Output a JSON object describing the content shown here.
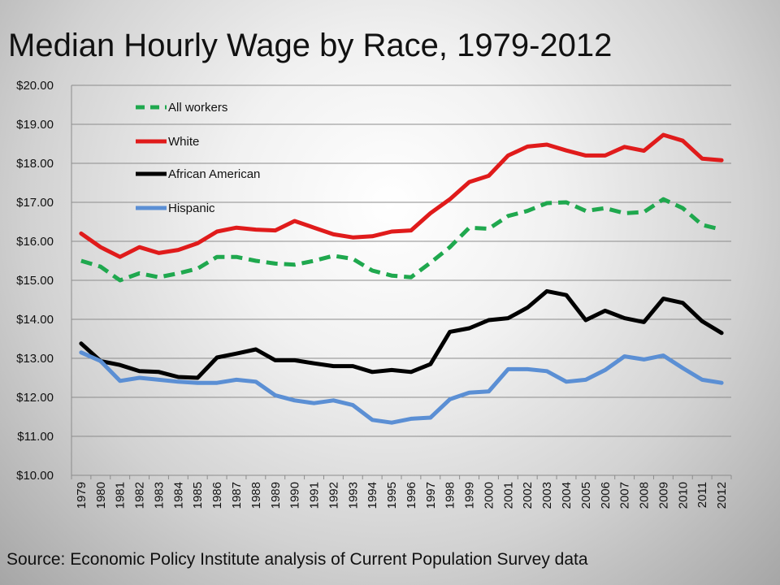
{
  "title": "Median Hourly Wage by Race, 1979-2012",
  "source": "Source: Economic Policy Institute analysis of Current Population Survey data",
  "chart_data": {
    "type": "line",
    "title": "Median Hourly Wage by Race, 1979-2012",
    "xlabel": "",
    "ylabel": "",
    "ylim": [
      10,
      20
    ],
    "y_ticks": [
      "$10.00",
      "$11.00",
      "$12.00",
      "$13.00",
      "$14.00",
      "$15.00",
      "$16.00",
      "$17.00",
      "$18.00",
      "$19.00",
      "$20.00"
    ],
    "grid": true,
    "legend_position": "top-left",
    "x": [
      "1979",
      "1980",
      "1981",
      "1982",
      "1983",
      "1984",
      "1985",
      "1986",
      "1987",
      "1988",
      "1989",
      "1990",
      "1991",
      "1992",
      "1993",
      "1994",
      "1995",
      "1996",
      "1997",
      "1998",
      "1999",
      "2000",
      "2001",
      "2002",
      "2003",
      "2004",
      "2005",
      "2006",
      "2007",
      "2008",
      "2009",
      "2010",
      "2011",
      "2012"
    ],
    "series": [
      {
        "name": "All workers",
        "color": "#1fa84e",
        "dash": true,
        "values": [
          15.5,
          15.35,
          15.0,
          15.18,
          15.08,
          15.18,
          15.3,
          15.6,
          15.6,
          15.5,
          15.43,
          15.4,
          15.5,
          15.63,
          15.55,
          15.25,
          15.12,
          15.08,
          15.45,
          15.85,
          16.35,
          16.32,
          16.65,
          16.78,
          16.98,
          17.0,
          16.78,
          16.85,
          16.72,
          16.75,
          17.08,
          16.85,
          16.42,
          16.3
        ]
      },
      {
        "name": "White",
        "color": "#e01b1b",
        "dash": false,
        "values": [
          16.2,
          15.85,
          15.6,
          15.85,
          15.7,
          15.78,
          15.95,
          16.25,
          16.35,
          16.3,
          16.28,
          16.52,
          16.35,
          16.18,
          16.1,
          16.13,
          16.25,
          16.28,
          16.72,
          17.08,
          17.52,
          17.68,
          18.2,
          18.43,
          18.48,
          18.33,
          18.2,
          18.2,
          18.42,
          18.32,
          18.73,
          18.58,
          18.12,
          18.08
        ]
      },
      {
        "name": "African American",
        "color": "#000000",
        "dash": false,
        "values": [
          13.38,
          12.93,
          12.83,
          12.67,
          12.65,
          12.52,
          12.5,
          13.02,
          13.12,
          13.23,
          12.95,
          12.95,
          12.87,
          12.8,
          12.8,
          12.65,
          12.7,
          12.65,
          12.85,
          13.68,
          13.77,
          13.98,
          14.03,
          14.3,
          14.72,
          14.62,
          13.98,
          14.22,
          14.03,
          13.93,
          14.53,
          14.42,
          13.95,
          13.65
        ]
      },
      {
        "name": "Hispanic",
        "color": "#5b8fd4",
        "dash": false,
        "values": [
          13.15,
          12.93,
          12.42,
          12.5,
          12.45,
          12.4,
          12.37,
          12.37,
          12.45,
          12.4,
          12.05,
          11.92,
          11.85,
          11.92,
          11.8,
          11.42,
          11.35,
          11.45,
          11.48,
          11.95,
          12.12,
          12.15,
          12.72,
          12.72,
          12.67,
          12.4,
          12.45,
          12.7,
          13.05,
          12.97,
          13.07,
          12.75,
          12.45,
          12.37
        ]
      }
    ]
  }
}
